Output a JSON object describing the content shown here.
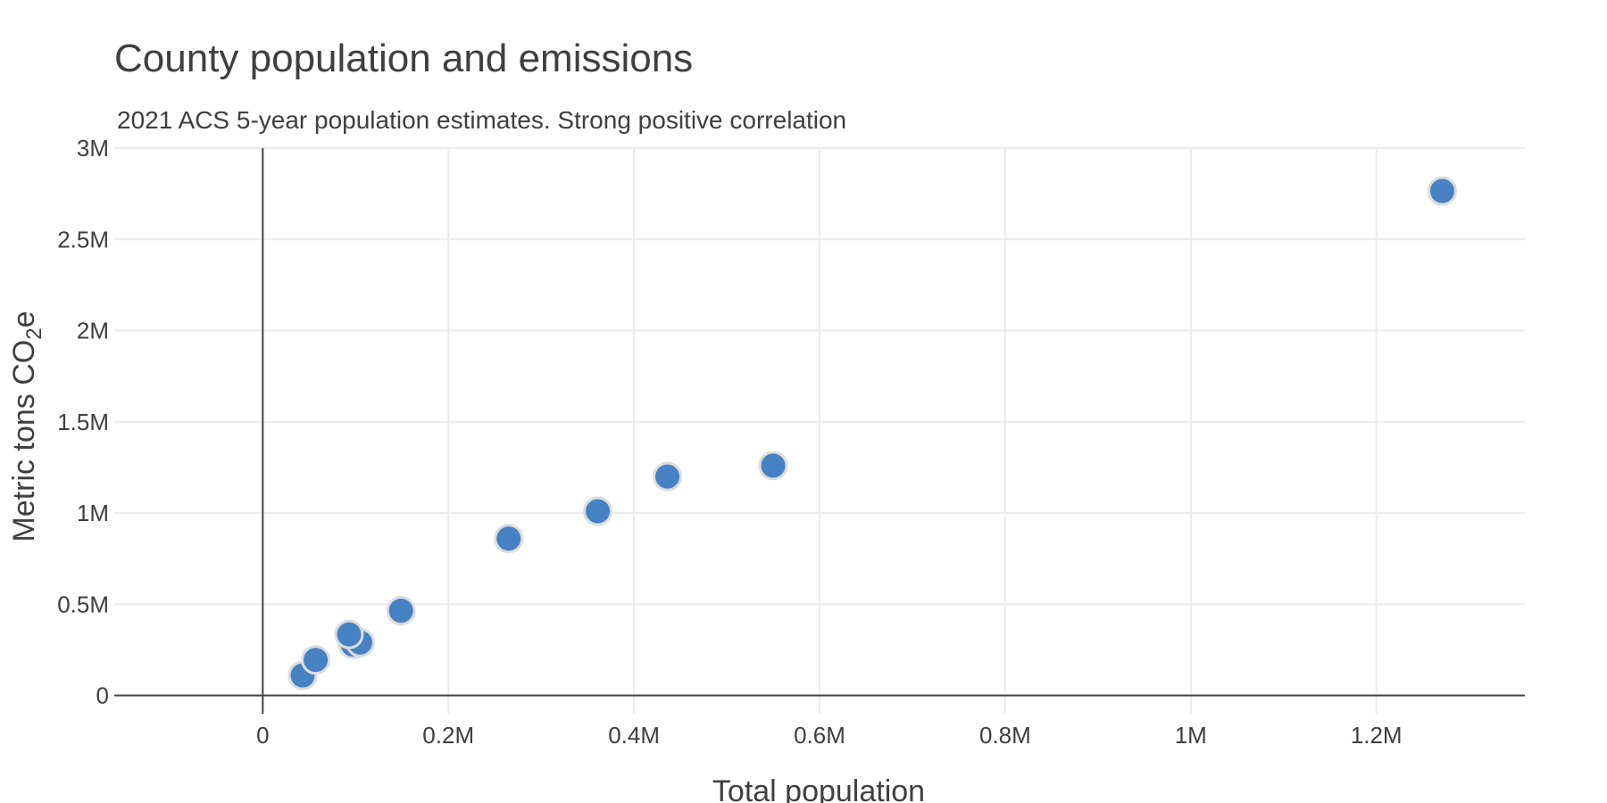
{
  "colors": {
    "point": "#4682c3",
    "point_outline": "#dcdcdc",
    "grid": "#ebebeb",
    "axis": "#444444",
    "text": "#3f3f3f"
  },
  "chart_data": {
    "type": "scatter",
    "title": "County population and emissions",
    "subtitle": "2021 ACS 5-year population estimates. Strong positive correlation",
    "xlabel": "Total population",
    "ylabel_main": "Metric tons CO",
    "ylabel_sub": "2",
    "ylabel_tail": "e",
    "xlim": [
      -160000,
      1360000
    ],
    "ylim": [
      -100000,
      3000000
    ],
    "x_ticks": [
      0,
      200000,
      400000,
      600000,
      800000,
      1000000,
      1200000
    ],
    "x_tick_labels": [
      "0",
      "0.2M",
      "0.4M",
      "0.6M",
      "0.8M",
      "1M",
      "1.2M"
    ],
    "y_ticks": [
      0,
      500000,
      1000000,
      1500000,
      2000000,
      2500000,
      3000000
    ],
    "y_tick_labels": [
      "0",
      "0.5M",
      "1M",
      "1.5M",
      "2M",
      "2.5M",
      "3M"
    ],
    "grid": true,
    "legend": "none",
    "points": [
      {
        "x": 43000,
        "y": 110000
      },
      {
        "x": 57000,
        "y": 195000
      },
      {
        "x": 97000,
        "y": 280000
      },
      {
        "x": 105000,
        "y": 290000
      },
      {
        "x": 93000,
        "y": 335000
      },
      {
        "x": 149000,
        "y": 465000
      },
      {
        "x": 265000,
        "y": 860000
      },
      {
        "x": 361000,
        "y": 1010000
      },
      {
        "x": 436000,
        "y": 1200000
      },
      {
        "x": 550000,
        "y": 1260000
      },
      {
        "x": 1271000,
        "y": 2765000
      }
    ]
  }
}
